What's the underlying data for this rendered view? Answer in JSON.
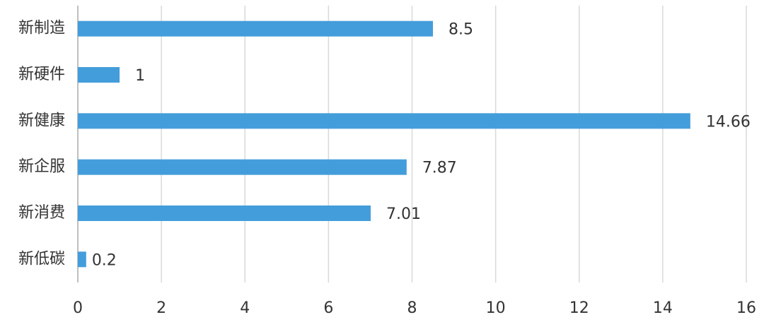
{
  "chart_data": {
    "type": "bar",
    "orientation": "horizontal",
    "categories": [
      "新制造",
      "新硬件",
      "新健康",
      "新企服",
      "新消费",
      "新低碳"
    ],
    "values": [
      8.5,
      1,
      14.66,
      7.87,
      7.01,
      0.2
    ],
    "color": "#449ddb",
    "xlim": [
      0,
      16
    ],
    "xticks": [
      0,
      2,
      4,
      6,
      8,
      10,
      12,
      14,
      16
    ],
    "grid": true
  }
}
